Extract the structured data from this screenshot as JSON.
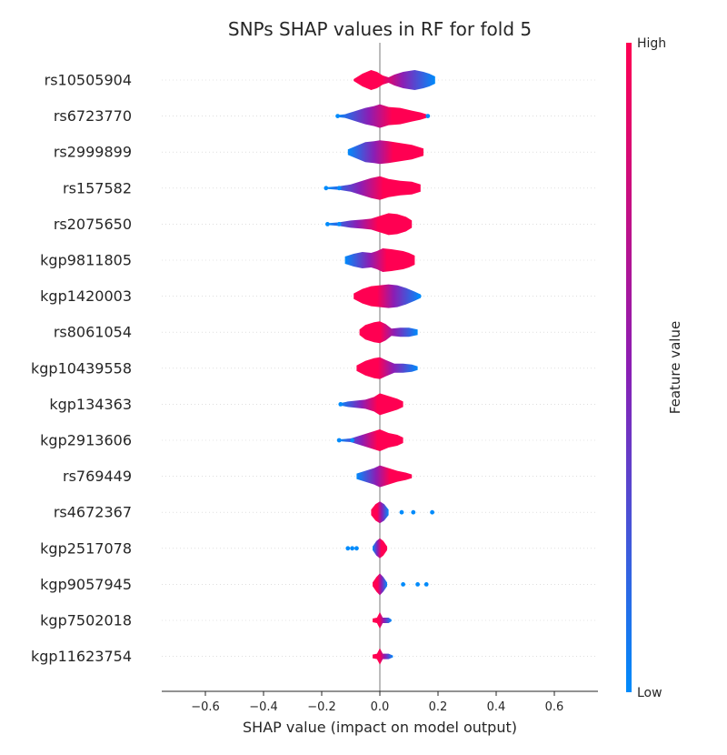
{
  "chart_data": {
    "type": "violin",
    "title": "SNPs SHAP values in RF for fold 5",
    "xlabel": "SHAP value (impact on model output)",
    "xlim": [
      -0.75,
      0.75
    ],
    "xticks": [
      -0.6,
      -0.4,
      -0.2,
      0.0,
      0.2,
      0.4,
      0.6
    ],
    "xtick_labels": [
      "−0.6",
      "−0.4",
      "−0.2",
      "0.0",
      "0.2",
      "0.4",
      "0.6"
    ],
    "colorbar": {
      "label": "Feature value",
      "high_label": "High",
      "low_label": "Low",
      "high_color": "#ff0052",
      "mid_color": "#8b1eb4",
      "low_color": "#008bfb"
    },
    "features": [
      {
        "name": "rs10505904",
        "min": -0.09,
        "max": 0.19,
        "low_side": "right",
        "profile": [
          [
            -0.09,
            1
          ],
          [
            -0.06,
            7
          ],
          [
            -0.03,
            11
          ],
          [
            -0.01,
            9
          ],
          [
            0.01,
            5
          ],
          [
            0.03,
            3
          ],
          [
            0.05,
            6
          ],
          [
            0.08,
            9
          ],
          [
            0.12,
            11
          ],
          [
            0.15,
            9
          ],
          [
            0.17,
            7
          ],
          [
            0.19,
            4
          ]
        ]
      },
      {
        "name": "rs6723770",
        "min": -0.15,
        "max": 0.17,
        "low_side": "left",
        "profile": [
          [
            -0.15,
            1
          ],
          [
            -0.12,
            2
          ],
          [
            -0.09,
            5
          ],
          [
            -0.05,
            9
          ],
          [
            -0.02,
            11
          ],
          [
            0.0,
            13
          ],
          [
            0.03,
            10
          ],
          [
            0.07,
            9
          ],
          [
            0.11,
            6
          ],
          [
            0.14,
            4
          ],
          [
            0.17,
            1
          ]
        ]
      },
      {
        "name": "rs2999899",
        "min": -0.11,
        "max": 0.15,
        "low_side": "left",
        "profile": [
          [
            -0.11,
            3
          ],
          [
            -0.08,
            7
          ],
          [
            -0.05,
            11
          ],
          [
            -0.02,
            12
          ],
          [
            0.0,
            13
          ],
          [
            0.03,
            12
          ],
          [
            0.07,
            10
          ],
          [
            0.11,
            8
          ],
          [
            0.15,
            4
          ]
        ]
      },
      {
        "name": "rs157582",
        "min": -0.18,
        "max": 0.14,
        "low_side": "left",
        "profile": [
          [
            -0.18,
            1
          ],
          [
            -0.14,
            2
          ],
          [
            -0.1,
            4
          ],
          [
            -0.06,
            8
          ],
          [
            -0.03,
            11
          ],
          [
            0.0,
            13
          ],
          [
            0.03,
            10
          ],
          [
            0.07,
            8
          ],
          [
            0.11,
            7
          ],
          [
            0.14,
            4
          ]
        ]
      },
      {
        "name": "rs2075650",
        "min": -0.18,
        "max": 0.11,
        "low_side": "left",
        "profile": [
          [
            -0.18,
            1
          ],
          [
            -0.14,
            2
          ],
          [
            -0.1,
            4
          ],
          [
            -0.06,
            5
          ],
          [
            -0.03,
            6
          ],
          [
            0.0,
            9
          ],
          [
            0.03,
            12
          ],
          [
            0.06,
            11
          ],
          [
            0.09,
            8
          ],
          [
            0.11,
            4
          ]
        ]
      },
      {
        "name": "kgp9811805",
        "min": -0.12,
        "max": 0.12,
        "low_side": "left",
        "profile": [
          [
            -0.12,
            4
          ],
          [
            -0.09,
            7
          ],
          [
            -0.06,
            9
          ],
          [
            -0.03,
            8
          ],
          [
            -0.01,
            10
          ],
          [
            0.01,
            13
          ],
          [
            0.04,
            12
          ],
          [
            0.08,
            10
          ],
          [
            0.1,
            8
          ],
          [
            0.12,
            5
          ]
        ]
      },
      {
        "name": "kgp1420003",
        "min": -0.09,
        "max": 0.14,
        "low_side": "right",
        "profile": [
          [
            -0.09,
            3
          ],
          [
            -0.06,
            8
          ],
          [
            -0.03,
            11
          ],
          [
            0.0,
            12
          ],
          [
            0.03,
            13
          ],
          [
            0.06,
            12
          ],
          [
            0.09,
            9
          ],
          [
            0.12,
            5
          ],
          [
            0.14,
            2
          ]
        ]
      },
      {
        "name": "rs8061054",
        "min": -0.07,
        "max": 0.13,
        "low_side": "right",
        "profile": [
          [
            -0.07,
            3
          ],
          [
            -0.05,
            8
          ],
          [
            -0.02,
            11
          ],
          [
            0.0,
            12
          ],
          [
            0.02,
            9
          ],
          [
            0.04,
            4
          ],
          [
            0.07,
            5
          ],
          [
            0.1,
            5
          ],
          [
            0.13,
            3
          ]
        ]
      },
      {
        "name": "kgp10439558",
        "min": -0.08,
        "max": 0.13,
        "low_side": "right",
        "profile": [
          [
            -0.08,
            3
          ],
          [
            -0.05,
            8
          ],
          [
            -0.02,
            11
          ],
          [
            0.0,
            12
          ],
          [
            0.02,
            9
          ],
          [
            0.05,
            5
          ],
          [
            0.08,
            5
          ],
          [
            0.11,
            4
          ],
          [
            0.13,
            2
          ]
        ]
      },
      {
        "name": "kgp134363",
        "min": -0.14,
        "max": 0.08,
        "low_side": "left",
        "profile": [
          [
            -0.14,
            1
          ],
          [
            -0.11,
            3
          ],
          [
            -0.08,
            4
          ],
          [
            -0.05,
            5
          ],
          [
            -0.02,
            8
          ],
          [
            0.0,
            12
          ],
          [
            0.03,
            9
          ],
          [
            0.06,
            6
          ],
          [
            0.08,
            3
          ]
        ]
      },
      {
        "name": "kgp2913606",
        "min": -0.14,
        "max": 0.08,
        "low_side": "left",
        "profile": [
          [
            -0.14,
            1
          ],
          [
            -0.1,
            2
          ],
          [
            -0.07,
            5
          ],
          [
            -0.04,
            8
          ],
          [
            -0.02,
            10
          ],
          [
            0.0,
            12
          ],
          [
            0.03,
            8
          ],
          [
            0.06,
            6
          ],
          [
            0.08,
            3
          ]
        ]
      },
      {
        "name": "rs769449",
        "min": -0.08,
        "max": 0.11,
        "low_side": "left",
        "profile": [
          [
            -0.08,
            3
          ],
          [
            -0.05,
            6
          ],
          [
            -0.02,
            9
          ],
          [
            0.0,
            12
          ],
          [
            0.03,
            9
          ],
          [
            0.06,
            6
          ],
          [
            0.09,
            4
          ],
          [
            0.11,
            2
          ]
        ]
      },
      {
        "name": "rs4672367",
        "min": -0.03,
        "max": 0.03,
        "low_side": "right",
        "profile": [
          [
            -0.03,
            3
          ],
          [
            -0.015,
            9
          ],
          [
            0.0,
            12
          ],
          [
            0.015,
            9
          ],
          [
            0.03,
            3
          ]
        ]
      },
      {
        "name": "kgp2517078",
        "min": -0.025,
        "max": 0.025,
        "low_side": "left",
        "profile": [
          [
            -0.025,
            2
          ],
          [
            -0.012,
            8
          ],
          [
            0.0,
            11
          ],
          [
            0.012,
            8
          ],
          [
            0.025,
            2
          ]
        ]
      },
      {
        "name": "kgp9057945",
        "min": -0.025,
        "max": 0.025,
        "low_side": "right",
        "profile": [
          [
            -0.025,
            2
          ],
          [
            -0.012,
            8
          ],
          [
            0.0,
            12
          ],
          [
            0.012,
            8
          ],
          [
            0.025,
            2
          ]
        ]
      },
      {
        "name": "kgp7502018",
        "min": -0.025,
        "max": 0.04,
        "low_side": "right",
        "profile": [
          [
            -0.025,
            2
          ],
          [
            -0.01,
            3
          ],
          [
            0.0,
            9
          ],
          [
            0.01,
            3
          ],
          [
            0.03,
            3
          ],
          [
            0.04,
            1
          ]
        ]
      },
      {
        "name": "kgp11623754",
        "min": -0.025,
        "max": 0.045,
        "low_side": "right",
        "profile": [
          [
            -0.025,
            2
          ],
          [
            -0.01,
            3
          ],
          [
            0.0,
            9
          ],
          [
            0.01,
            3
          ],
          [
            0.03,
            3
          ],
          [
            0.045,
            1
          ]
        ]
      }
    ],
    "outliers": [
      {
        "feature": "rs6723770",
        "x": [
          -0.145,
          0.165
        ]
      },
      {
        "feature": "rs157582",
        "x": [
          -0.185,
          -0.14
        ]
      },
      {
        "feature": "rs2075650",
        "x": [
          -0.18,
          -0.14
        ]
      },
      {
        "feature": "kgp1420003",
        "x": [
          0.135
        ]
      },
      {
        "feature": "kgp134363",
        "x": [
          -0.135
        ]
      },
      {
        "feature": "kgp2913606",
        "x": [
          -0.14,
          -0.095
        ]
      },
      {
        "feature": "rs4672367",
        "x": [
          0.075,
          0.115,
          0.18
        ]
      },
      {
        "feature": "kgp2517078",
        "x": [
          -0.11,
          -0.095,
          -0.08
        ]
      },
      {
        "feature": "kgp9057945",
        "x": [
          0.08,
          0.13,
          0.16
        ]
      }
    ]
  }
}
